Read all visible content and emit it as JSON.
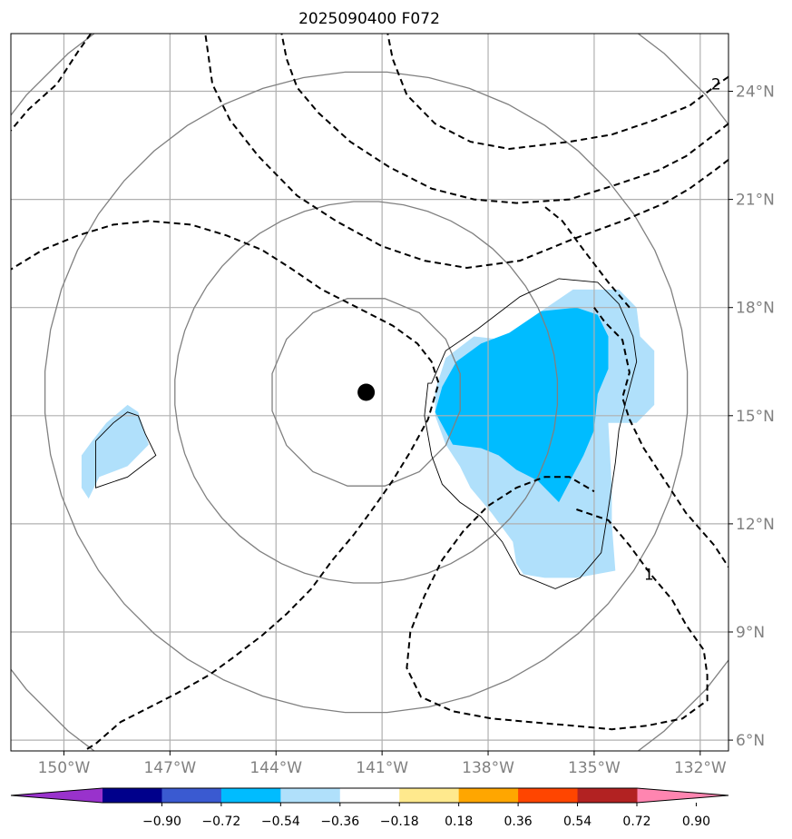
{
  "chart_data": {
    "type": "map-contour",
    "title": "2025090400 F072",
    "xlabel": "",
    "ylabel": "",
    "xlim": [
      -151.5,
      -131.2
    ],
    "ylim": [
      5.7,
      25.6
    ],
    "x_ticks": [
      -150,
      -147,
      -144,
      -141,
      -138,
      -135,
      -132
    ],
    "x_tick_labels": [
      "150°W",
      "147°W",
      "144°W",
      "141°W",
      "138°W",
      "135°W",
      "132°W"
    ],
    "y_ticks": [
      6,
      9,
      12,
      15,
      18,
      21,
      24
    ],
    "y_tick_labels": [
      "6°N",
      "9°N",
      "12°N",
      "15°N",
      "18°N",
      "21°N",
      "24°N"
    ],
    "grid": true,
    "center_marker": {
      "lon": -141.45,
      "lat": 15.65,
      "color": "#000000"
    },
    "range_rings": {
      "color": "#808080",
      "center": {
        "lon": -141.45,
        "lat": 15.65
      },
      "radii_deg_lat": [
        2.65,
        5.3,
        8.9,
        12.5
      ]
    },
    "shaded_fields": [
      {
        "level": "-0.36 to -0.18",
        "color": "#b0e0fb",
        "polygons": [
          [
            [
              -139.5,
              15.7
            ],
            [
              -139.2,
              16.6
            ],
            [
              -138.4,
              17.2
            ],
            [
              -137.5,
              17.1
            ],
            [
              -136.5,
              17.9
            ],
            [
              -135.6,
              18.5
            ],
            [
              -134.3,
              18.5
            ],
            [
              -133.8,
              18
            ],
            [
              -133.7,
              17.2
            ],
            [
              -133.3,
              16.8
            ],
            [
              -133.3,
              15.3
            ],
            [
              -133.8,
              14.8
            ],
            [
              -134.6,
              14.8
            ],
            [
              -134.5,
              13
            ],
            [
              -134.5,
              12
            ],
            [
              -134.4,
              10.7
            ],
            [
              -135.5,
              10.5
            ],
            [
              -136.4,
              10.5
            ],
            [
              -137,
              10.6
            ],
            [
              -137.2,
              10.9
            ],
            [
              -137.3,
              11.5
            ],
            [
              -137.9,
              12.3
            ],
            [
              -138.5,
              13
            ],
            [
              -138.8,
              13.6
            ],
            [
              -139.2,
              14.2
            ],
            [
              -139.5,
              15
            ]
          ],
          [
            [
              -149.5,
              13.9
            ],
            [
              -149.2,
              14.3
            ],
            [
              -148.8,
              14.8
            ],
            [
              -148.2,
              15.3
            ],
            [
              -147.9,
              15.1
            ],
            [
              -147.6,
              14.2
            ],
            [
              -148.2,
              13.6
            ],
            [
              -149,
              13.3
            ],
            [
              -149.3,
              12.7
            ],
            [
              -149.5,
              13
            ]
          ]
        ]
      },
      {
        "level": "-0.54 to -0.36",
        "color": "#00bcff",
        "polygons": [
          [
            [
              -139.5,
              15.1
            ],
            [
              -139.3,
              15.8
            ],
            [
              -138.9,
              16.5
            ],
            [
              -138.2,
              17
            ],
            [
              -137.4,
              17.3
            ],
            [
              -136.5,
              17.9
            ],
            [
              -135.5,
              18
            ],
            [
              -134.9,
              17.8
            ],
            [
              -134.6,
              17.2
            ],
            [
              -134.6,
              16.3
            ],
            [
              -134.9,
              15.6
            ],
            [
              -135,
              14.6
            ],
            [
              -135.3,
              13.9
            ],
            [
              -136,
              12.6
            ],
            [
              -136.6,
              13.2
            ],
            [
              -137.2,
              13.5
            ],
            [
              -137.7,
              13.9
            ],
            [
              -138.2,
              14.1
            ],
            [
              -139,
              14.2
            ]
          ]
        ]
      }
    ],
    "solid_contours": [
      [
        [
          -139.6,
          15.9
        ],
        [
          -139.2,
          16.8
        ],
        [
          -138.3,
          17.4
        ],
        [
          -137.1,
          18.3
        ],
        [
          -136,
          18.8
        ],
        [
          -134.9,
          18.7
        ],
        [
          -134.3,
          18.1
        ],
        [
          -133.9,
          17.2
        ],
        [
          -133.8,
          16.5
        ],
        [
          -134.1,
          15.4
        ],
        [
          -134.3,
          14.6
        ],
        [
          -134.4,
          13.7
        ],
        [
          -134.6,
          12.4
        ],
        [
          -134.8,
          11.2
        ],
        [
          -135.4,
          10.5
        ],
        [
          -136.1,
          10.2
        ],
        [
          -137.1,
          10.6
        ],
        [
          -137.6,
          11.5
        ],
        [
          -138.2,
          12.2
        ],
        [
          -138.8,
          12.6
        ],
        [
          -139.3,
          13.1
        ],
        [
          -139.6,
          13.9
        ],
        [
          -139.8,
          15
        ],
        [
          -139.7,
          15.9
        ]
      ],
      [
        [
          -149.1,
          14.3
        ],
        [
          -148.6,
          14.8
        ],
        [
          -148.2,
          15.1
        ],
        [
          -147.9,
          15
        ],
        [
          -147.7,
          14.5
        ],
        [
          -147.4,
          13.9
        ],
        [
          -147.8,
          13.6
        ],
        [
          -148.2,
          13.3
        ],
        [
          -149.1,
          13
        ]
      ]
    ],
    "dashed_contours": [
      {
        "label": "2",
        "points": [
          [
            -131.2,
            24.4
          ],
          [
            -131.5,
            24.2
          ],
          [
            -132.3,
            23.6
          ],
          [
            -133.3,
            23.2
          ],
          [
            -134.5,
            22.8
          ],
          [
            -135.7,
            22.6
          ],
          [
            -137.4,
            22.4
          ],
          [
            -138.5,
            22.6
          ],
          [
            -139.5,
            23.1
          ],
          [
            -140.3,
            23.9
          ],
          [
            -140.7,
            24.9
          ],
          [
            -140.9,
            25.9
          ],
          [
            -141.1,
            26.2
          ]
        ]
      },
      {
        "label": "",
        "points": [
          [
            -131.2,
            23.1
          ],
          [
            -131.6,
            22.8
          ],
          [
            -132.4,
            22.2
          ],
          [
            -133.2,
            21.8
          ],
          [
            -134.4,
            21.4
          ],
          [
            -135.7,
            21
          ],
          [
            -137.2,
            20.9
          ],
          [
            -138.4,
            21.0
          ],
          [
            -139.6,
            21.3
          ],
          [
            -140.8,
            21.9
          ],
          [
            -141.9,
            22.6
          ],
          [
            -142.8,
            23.4
          ],
          [
            -143.4,
            24.1
          ],
          [
            -143.7,
            24.9
          ],
          [
            -143.9,
            25.9
          ],
          [
            -144.0,
            26.2
          ]
        ]
      },
      {
        "label": "",
        "points": [
          [
            -131.2,
            22.1
          ],
          [
            -131.6,
            21.8
          ],
          [
            -132.3,
            21.3
          ],
          [
            -133.0,
            20.9
          ],
          [
            -134.2,
            20.4
          ],
          [
            -135.6,
            19.9
          ],
          [
            -137.1,
            19.3
          ],
          [
            -138.6,
            19.1
          ],
          [
            -139.8,
            19.3
          ],
          [
            -141,
            19.7
          ],
          [
            -142.3,
            20.4
          ],
          [
            -143.4,
            21.1
          ],
          [
            -144.5,
            22.2
          ],
          [
            -145.3,
            23.2
          ],
          [
            -145.8,
            24.2
          ],
          [
            -146.0,
            25.6
          ],
          [
            -146.2,
            26.2
          ]
        ]
      },
      {
        "label": "",
        "points": [
          [
            -151.6,
            22.8
          ],
          [
            -151,
            23.5
          ],
          [
            -150.2,
            24.2
          ],
          [
            -149.6,
            25.1
          ],
          [
            -148.8,
            26.2
          ]
        ]
      },
      {
        "label": "",
        "points": [
          [
            -151.6,
            19.0
          ],
          [
            -150.6,
            19.6
          ],
          [
            -149.6,
            20
          ],
          [
            -148.6,
            20.3
          ],
          [
            -147.6,
            20.4
          ],
          [
            -146.4,
            20.3
          ],
          [
            -145.4,
            20
          ],
          [
            -144.4,
            19.6
          ],
          [
            -143.6,
            19.1
          ],
          [
            -142.7,
            18.5
          ],
          [
            -141.7,
            18
          ],
          [
            -140.7,
            17.5
          ],
          [
            -140.0,
            17.0
          ],
          [
            -139.6,
            16.5
          ],
          [
            -139.4,
            15.9
          ],
          [
            -139.7,
            14.9
          ],
          [
            -140.2,
            14
          ],
          [
            -140.7,
            13.2
          ],
          [
            -141.2,
            12.5
          ],
          [
            -141.8,
            11.7
          ],
          [
            -142.4,
            11
          ],
          [
            -143.0,
            10.2
          ],
          [
            -143.7,
            9.5
          ],
          [
            -144.4,
            8.9
          ],
          [
            -145.2,
            8.3
          ],
          [
            -145.9,
            7.8
          ],
          [
            -146.8,
            7.3
          ],
          [
            -147.6,
            6.9
          ],
          [
            -148.4,
            6.5
          ],
          [
            -149.1,
            5.9
          ],
          [
            -149.6,
            5.6
          ]
        ]
      },
      {
        "label": "",
        "points": [
          [
            -135.0,
            18.0
          ],
          [
            -134.7,
            17.6
          ],
          [
            -134.2,
            17.1
          ],
          [
            -134.0,
            16.2
          ],
          [
            -134.2,
            15.5
          ],
          [
            -134.0,
            14.9
          ],
          [
            -133.6,
            14.1
          ],
          [
            -133.0,
            13.2
          ],
          [
            -132.4,
            12.3
          ],
          [
            -131.6,
            11.4
          ],
          [
            -131.2,
            10.8
          ]
        ]
      },
      {
        "label": "",
        "points": [
          [
            -134.0,
            18.0
          ],
          [
            -134.6,
            18.7
          ],
          [
            -135.3,
            19.6
          ],
          [
            -135.9,
            20.4
          ],
          [
            -136.4,
            20.8
          ]
        ]
      },
      {
        "label": "1",
        "points": [
          [
            -135.5,
            12.4
          ],
          [
            -134.6,
            12.1
          ],
          [
            -134.0,
            11.4
          ],
          [
            -133.4,
            10.6
          ],
          [
            -132.8,
            9.9
          ],
          [
            -132.4,
            9.2
          ],
          [
            -131.9,
            8.5
          ],
          [
            -131.8,
            7.8
          ],
          [
            -131.8,
            7.1
          ],
          [
            -132.5,
            6.6
          ],
          [
            -133.5,
            6.4
          ],
          [
            -134.5,
            6.3
          ],
          [
            -135.6,
            6.4
          ],
          [
            -136.8,
            6.5
          ],
          [
            -137.9,
            6.6
          ],
          [
            -139.0,
            6.8
          ],
          [
            -139.9,
            7.2
          ],
          [
            -140.3,
            8.0
          ],
          [
            -140.2,
            9.0
          ],
          [
            -139.8,
            10.0
          ],
          [
            -139.3,
            11.0
          ],
          [
            -138.7,
            11.8
          ],
          [
            -138.0,
            12.5
          ],
          [
            -137.2,
            13.0
          ],
          [
            -136.4,
            13.3
          ],
          [
            -135.7,
            13.3
          ],
          [
            -135.0,
            12.9
          ]
        ]
      }
    ],
    "colorbar": {
      "boundaries": [
        -1.08,
        -0.9,
        -0.72,
        -0.54,
        -0.36,
        -0.18,
        0.18,
        0.36,
        0.54,
        0.72,
        0.9,
        1.08
      ],
      "tick_labels": [
        "−0.90",
        "−0.72",
        "−0.54",
        "−0.36",
        "−0.18",
        "0.18",
        "0.36",
        "0.54",
        "0.72",
        "0.90"
      ],
      "colors": [
        "#9932cc",
        "#00008b",
        "#3a5ad1",
        "#00bcff",
        "#b0e0fb",
        "#ffffff",
        "#ffe98d",
        "#ffa600",
        "#ff4500",
        "#b22222",
        "#ff85b0"
      ],
      "extend": "both",
      "placement": "bottom"
    }
  }
}
